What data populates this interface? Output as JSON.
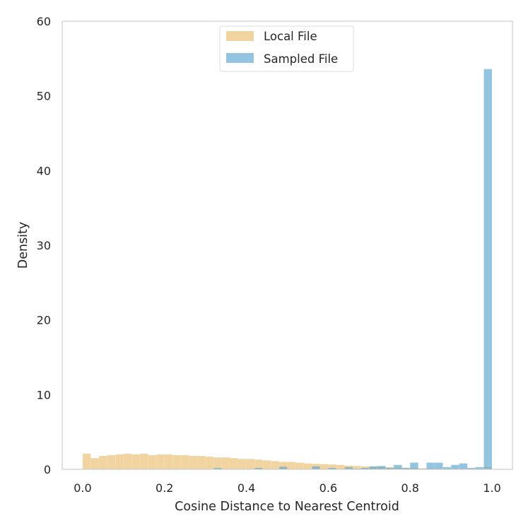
{
  "chart_data": {
    "type": "histogram",
    "title": "",
    "xlabel": "Cosine Distance to Nearest Centroid",
    "ylabel": "Density",
    "xlim": [
      -0.05,
      1.05
    ],
    "ylim": [
      0,
      60
    ],
    "xticks": [
      "0.0",
      "0.2",
      "0.4",
      "0.6",
      "0.8",
      "1.0"
    ],
    "yticks": [
      "0",
      "10",
      "20",
      "30",
      "40",
      "50",
      "60"
    ],
    "grid": false,
    "legend_position": "upper center",
    "bin_edges_start": 0.0,
    "bin_width": 0.02,
    "series": [
      {
        "name": "Local File",
        "color": "#E8B860",
        "opacity": 0.6,
        "values": [
          2.1,
          1.5,
          1.8,
          1.9,
          2.0,
          2.1,
          2.0,
          2.1,
          1.9,
          2.0,
          2.0,
          1.9,
          1.9,
          1.8,
          1.8,
          1.7,
          1.6,
          1.6,
          1.5,
          1.4,
          1.4,
          1.3,
          1.2,
          1.1,
          1.0,
          1.0,
          0.9,
          0.8,
          0.75,
          0.7,
          0.65,
          0.6,
          0.5,
          0.45,
          0.4,
          0.35,
          0.3,
          0.3,
          0.25,
          0.2,
          0.2,
          0.15,
          0.15,
          0.1,
          0.1,
          0.1,
          0.1,
          0.1,
          0.1,
          0.3
        ]
      },
      {
        "name": "Sampled File",
        "color": "#4B9FCB",
        "opacity": 0.6,
        "values": [
          0.05,
          0,
          0,
          0,
          0,
          0,
          0,
          0,
          0,
          0,
          0,
          0,
          0,
          0,
          0,
          0,
          0.2,
          0,
          0,
          0,
          0,
          0.2,
          0,
          0,
          0.35,
          0,
          0,
          0,
          0.4,
          0,
          0.2,
          0,
          0.3,
          0.1,
          0.2,
          0.4,
          0.45,
          0.2,
          0.6,
          0.2,
          0.9,
          0.1,
          0.9,
          0.9,
          0.3,
          0.6,
          0.8,
          0.2,
          0.3,
          53.6
        ]
      }
    ]
  }
}
